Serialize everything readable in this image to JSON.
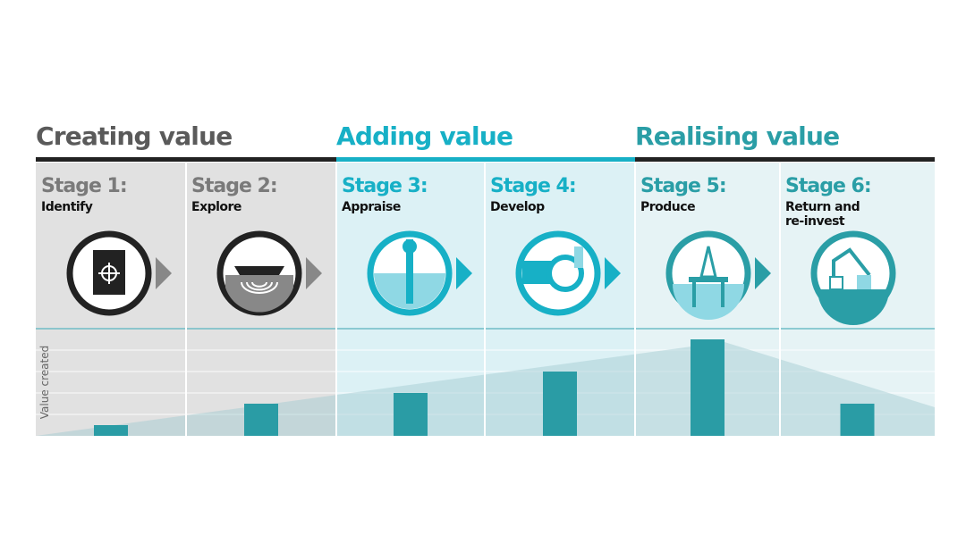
{
  "phases": [
    {
      "title": "Creating value",
      "color": "#5a5a5a",
      "rule": "#222222",
      "stages": [
        0,
        1
      ]
    },
    {
      "title": "Adding value",
      "color": "#17b0c6",
      "rule": "#17b0c6",
      "stages": [
        2,
        3
      ]
    },
    {
      "title": "Realising value",
      "color": "#2a9ea6",
      "rule": "#222222",
      "stages": [
        4,
        5
      ]
    }
  ],
  "stages": [
    {
      "label": "Stage 1:",
      "name": [
        "Identify"
      ]
    },
    {
      "label": "Stage 2:",
      "name": [
        "Explore"
      ]
    },
    {
      "label": "Stage 3:",
      "name": [
        "Appraise"
      ]
    },
    {
      "label": "Stage 4:",
      "name": [
        "Develop"
      ]
    },
    {
      "label": "Stage 5:",
      "name": [
        "Produce"
      ]
    },
    {
      "label": "Stage 6:",
      "name": [
        "Return and",
        "re-invest"
      ]
    }
  ],
  "chart_data": {
    "type": "bar",
    "y_label": "Value created",
    "values": [
      0.5,
      1.5,
      2,
      3,
      4.5,
      1.5
    ],
    "color": "#2a9ca5",
    "ylim": [
      0,
      5
    ],
    "yticks": [
      1,
      2,
      3,
      4
    ],
    "tick_labels": false,
    "grid": true
  }
}
